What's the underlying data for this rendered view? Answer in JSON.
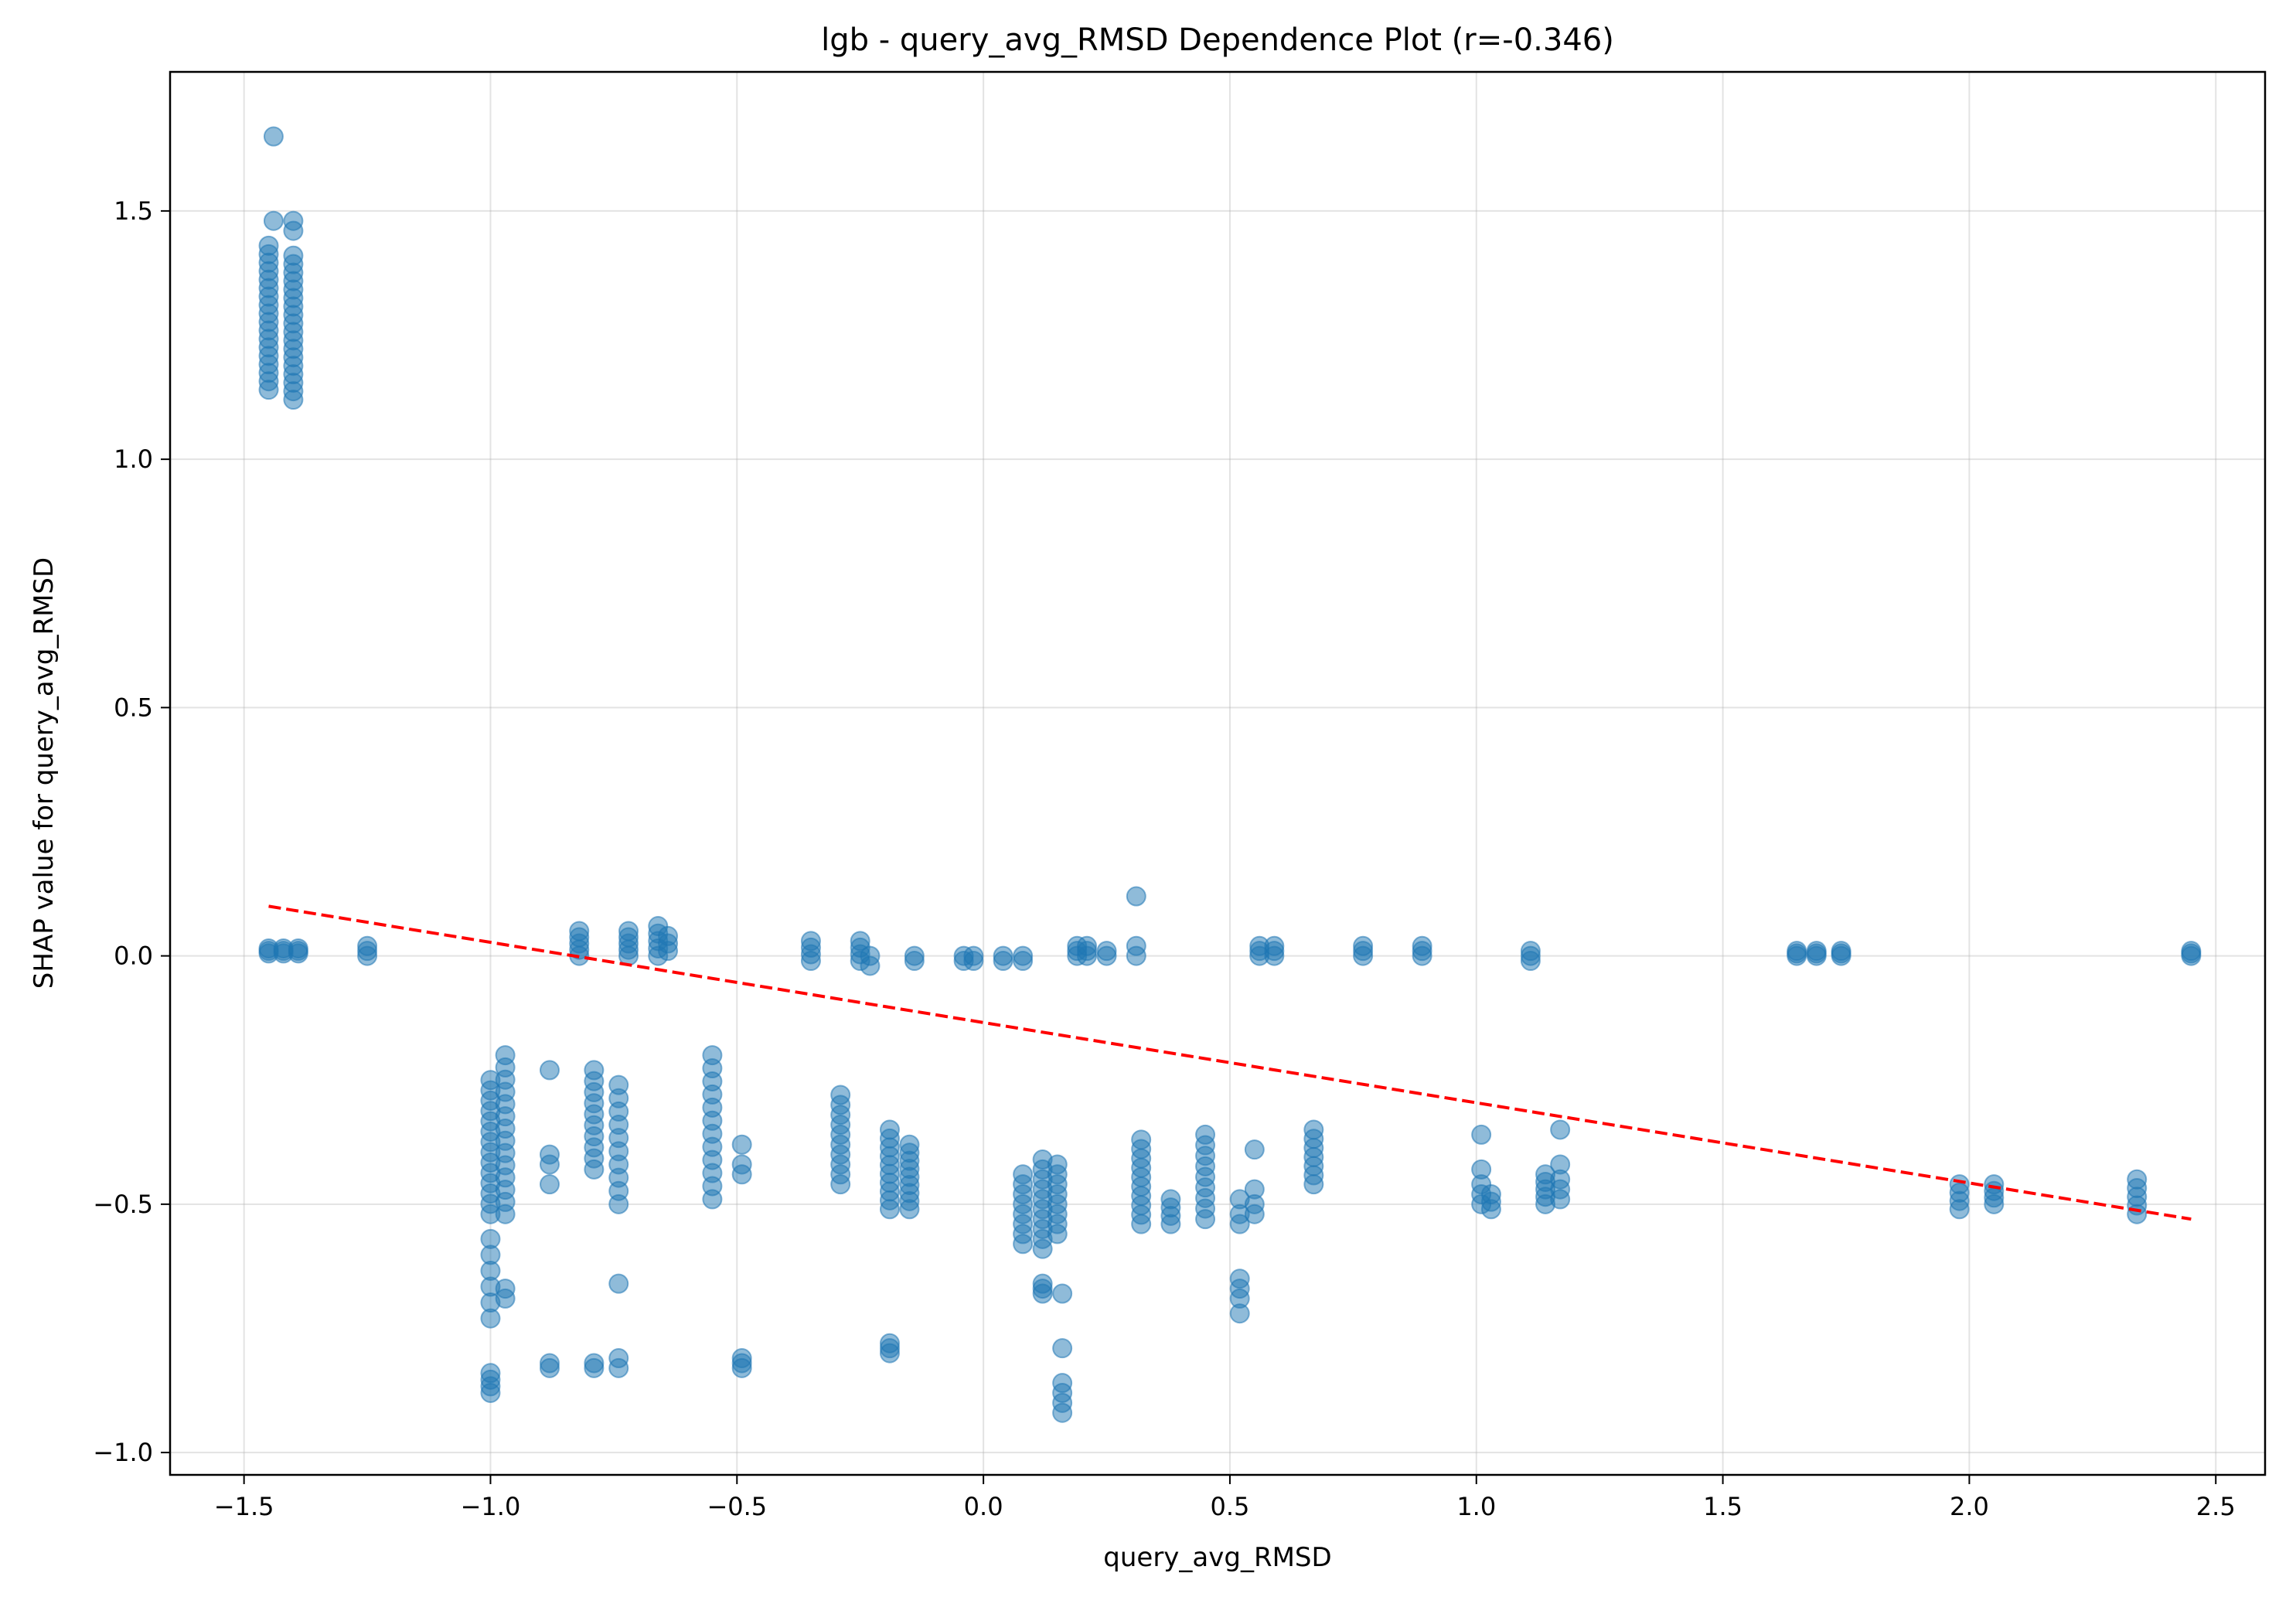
{
  "chart_data": {
    "type": "scatter",
    "title": "lgb - query_avg_RMSD Dependence Plot (r=-0.346)",
    "xlabel": "query_avg_RMSD",
    "ylabel": "SHAP value for query_avg_RMSD",
    "xlim": [
      -1.65,
      2.6
    ],
    "ylim": [
      -1.045,
      1.78
    ],
    "grid": true,
    "x_ticks": [
      -1.5,
      -1.0,
      -0.5,
      0.0,
      0.5,
      1.0,
      1.5,
      2.0,
      2.5
    ],
    "x_tick_labels": [
      "−1.5",
      "−1.0",
      "−0.5",
      "0.0",
      "0.5",
      "1.0",
      "1.5",
      "2.0",
      "2.5"
    ],
    "y_ticks": [
      -1.0,
      -0.5,
      0.0,
      0.5,
      1.0,
      1.5
    ],
    "y_tick_labels": [
      "−1.0",
      "−0.5",
      "0.0",
      "0.5",
      "1.0",
      "1.5"
    ],
    "point_color": "#1f77b4",
    "trend_color": "#ff0000",
    "trend_line": {
      "style": "dashed",
      "x": [
        -1.45,
        2.45
      ],
      "y": [
        0.1,
        -0.53
      ]
    },
    "series": [
      {
        "clusters": [
          {
            "x": -1.45,
            "y_min": 1.14,
            "y_max": 1.43,
            "n": 18
          },
          {
            "x": -1.44,
            "y": [
              1.65,
              1.48
            ]
          },
          {
            "x": -1.4,
            "y_min": 1.12,
            "y_max": 1.41,
            "n": 18
          },
          {
            "x": -1.4,
            "y": [
              1.48,
              1.46
            ]
          },
          {
            "x": -1.45,
            "y_min": 0.005,
            "y_max": 0.015,
            "n": 3
          },
          {
            "x": -1.42,
            "y_min": 0.005,
            "y_max": 0.015,
            "n": 3
          },
          {
            "x": -1.39,
            "y_min": 0.005,
            "y_max": 0.015,
            "n": 3
          },
          {
            "x": -1.25,
            "y_min": 0.0,
            "y_max": 0.02,
            "n": 3
          },
          {
            "x": -1.0,
            "y_min": -0.52,
            "y_max": -0.25,
            "n": 14
          },
          {
            "x": -1.0,
            "y_min": -0.73,
            "y_max": -0.57,
            "n": 6
          },
          {
            "x": -1.0,
            "y_min": -0.88,
            "y_max": -0.84,
            "n": 4
          },
          {
            "x": -0.97,
            "y_min": -0.52,
            "y_max": -0.2,
            "n": 14
          },
          {
            "x": -0.97,
            "y": [
              -0.67,
              -0.69
            ]
          },
          {
            "x": -0.88,
            "y": [
              -0.23,
              -0.4,
              -0.42,
              -0.46,
              -0.82,
              -0.83
            ]
          },
          {
            "x": -0.82,
            "y_min": 0.0,
            "y_max": 0.05,
            "n": 5
          },
          {
            "x": -0.79,
            "y_min": -0.43,
            "y_max": -0.23,
            "n": 10
          },
          {
            "x": -0.79,
            "y_min": -0.83,
            "y_max": -0.82,
            "n": 2
          },
          {
            "x": -0.74,
            "y_min": -0.5,
            "y_max": -0.26,
            "n": 10
          },
          {
            "x": -0.74,
            "y": [
              -0.66,
              -0.81,
              -0.83
            ]
          },
          {
            "x": -0.72,
            "y_min": 0.0,
            "y_max": 0.05,
            "n": 5
          },
          {
            "x": -0.66,
            "y_min": 0.0,
            "y_max": 0.06,
            "n": 5
          },
          {
            "x": -0.64,
            "y_min": 0.01,
            "y_max": 0.04,
            "n": 3
          },
          {
            "x": -0.55,
            "y_min": -0.49,
            "y_max": -0.2,
            "n": 12
          },
          {
            "x": -0.49,
            "y": [
              -0.38,
              -0.42,
              -0.44,
              -0.81,
              -0.82,
              -0.83
            ]
          },
          {
            "x": -0.35,
            "y_min": -0.01,
            "y_max": 0.03,
            "n": 4
          },
          {
            "x": -0.29,
            "y_min": -0.46,
            "y_max": -0.28,
            "n": 10
          },
          {
            "x": -0.25,
            "y_min": -0.01,
            "y_max": 0.03,
            "n": 4
          },
          {
            "x": -0.23,
            "y_min": -0.02,
            "y_max": 0.0,
            "n": 2
          },
          {
            "x": -0.19,
            "y_min": -0.51,
            "y_max": -0.35,
            "n": 10
          },
          {
            "x": -0.19,
            "y_min": -0.8,
            "y_max": -0.78,
            "n": 3
          },
          {
            "x": -0.15,
            "y_min": -0.51,
            "y_max": -0.38,
            "n": 9
          },
          {
            "x": -0.14,
            "y_min": -0.01,
            "y_max": 0.0,
            "n": 2
          },
          {
            "x": -0.04,
            "y_min": -0.01,
            "y_max": 0.0,
            "n": 2
          },
          {
            "x": -0.02,
            "y_min": -0.01,
            "y_max": 0.0,
            "n": 2
          },
          {
            "x": 0.04,
            "y_min": -0.01,
            "y_max": 0.0,
            "n": 2
          },
          {
            "x": 0.08,
            "y_min": -0.01,
            "y_max": 0.0,
            "n": 2
          },
          {
            "x": 0.08,
            "y_min": -0.58,
            "y_max": -0.44,
            "n": 8
          },
          {
            "x": 0.12,
            "y_min": -0.59,
            "y_max": -0.41,
            "n": 10
          },
          {
            "x": 0.12,
            "y_min": -0.68,
            "y_max": -0.66,
            "n": 3
          },
          {
            "x": 0.15,
            "y_min": -0.56,
            "y_max": -0.42,
            "n": 8
          },
          {
            "x": 0.16,
            "y": [
              -0.68,
              -0.79,
              -0.86,
              -0.88,
              -0.9,
              -0.92
            ]
          },
          {
            "x": 0.19,
            "y_min": 0.0,
            "y_max": 0.02,
            "n": 3
          },
          {
            "x": 0.21,
            "y_min": 0.0,
            "y_max": 0.02,
            "n": 3
          },
          {
            "x": 0.25,
            "y_min": 0.0,
            "y_max": 0.01,
            "n": 2
          },
          {
            "x": 0.31,
            "y": [
              0.12,
              0.02,
              0.0
            ]
          },
          {
            "x": 0.32,
            "y_min": -0.54,
            "y_max": -0.37,
            "n": 10
          },
          {
            "x": 0.38,
            "y_min": -0.54,
            "y_max": -0.49,
            "n": 4
          },
          {
            "x": 0.45,
            "y_min": -0.53,
            "y_max": -0.36,
            "n": 9
          },
          {
            "x": 0.52,
            "y": [
              -0.49,
              -0.52,
              -0.54,
              -0.65,
              -0.67,
              -0.69,
              -0.72
            ]
          },
          {
            "x": 0.55,
            "y": [
              -0.39,
              -0.47,
              -0.5,
              -0.52
            ]
          },
          {
            "x": 0.56,
            "y_min": 0.0,
            "y_max": 0.02,
            "n": 3
          },
          {
            "x": 0.59,
            "y_min": 0.0,
            "y_max": 0.02,
            "n": 3
          },
          {
            "x": 0.67,
            "y_min": -0.46,
            "y_max": -0.35,
            "n": 7
          },
          {
            "x": 0.77,
            "y_min": 0.0,
            "y_max": 0.02,
            "n": 3
          },
          {
            "x": 0.89,
            "y_min": 0.0,
            "y_max": 0.02,
            "n": 3
          },
          {
            "x": 1.01,
            "y": [
              -0.36,
              -0.43,
              -0.46,
              -0.48,
              -0.5
            ]
          },
          {
            "x": 1.03,
            "y_min": -0.51,
            "y_max": -0.48,
            "n": 3
          },
          {
            "x": 1.11,
            "y_min": -0.01,
            "y_max": 0.01,
            "n": 3
          },
          {
            "x": 1.14,
            "y_min": -0.5,
            "y_max": -0.44,
            "n": 5
          },
          {
            "x": 1.17,
            "y": [
              -0.35,
              -0.42,
              -0.45,
              -0.47,
              -0.49
            ]
          },
          {
            "x": 1.65,
            "y_min": 0.0,
            "y_max": 0.01,
            "n": 3
          },
          {
            "x": 1.69,
            "y_min": 0.0,
            "y_max": 0.01,
            "n": 3
          },
          {
            "x": 1.74,
            "y_min": 0.0,
            "y_max": 0.01,
            "n": 3
          },
          {
            "x": 1.98,
            "y_min": -0.51,
            "y_max": -0.46,
            "n": 4
          },
          {
            "x": 2.05,
            "y_min": -0.5,
            "y_max": -0.46,
            "n": 4
          },
          {
            "x": 2.34,
            "y_min": -0.52,
            "y_max": -0.45,
            "n": 5
          },
          {
            "x": 2.45,
            "y_min": 0.0,
            "y_max": 0.01,
            "n": 3
          }
        ]
      }
    ]
  }
}
